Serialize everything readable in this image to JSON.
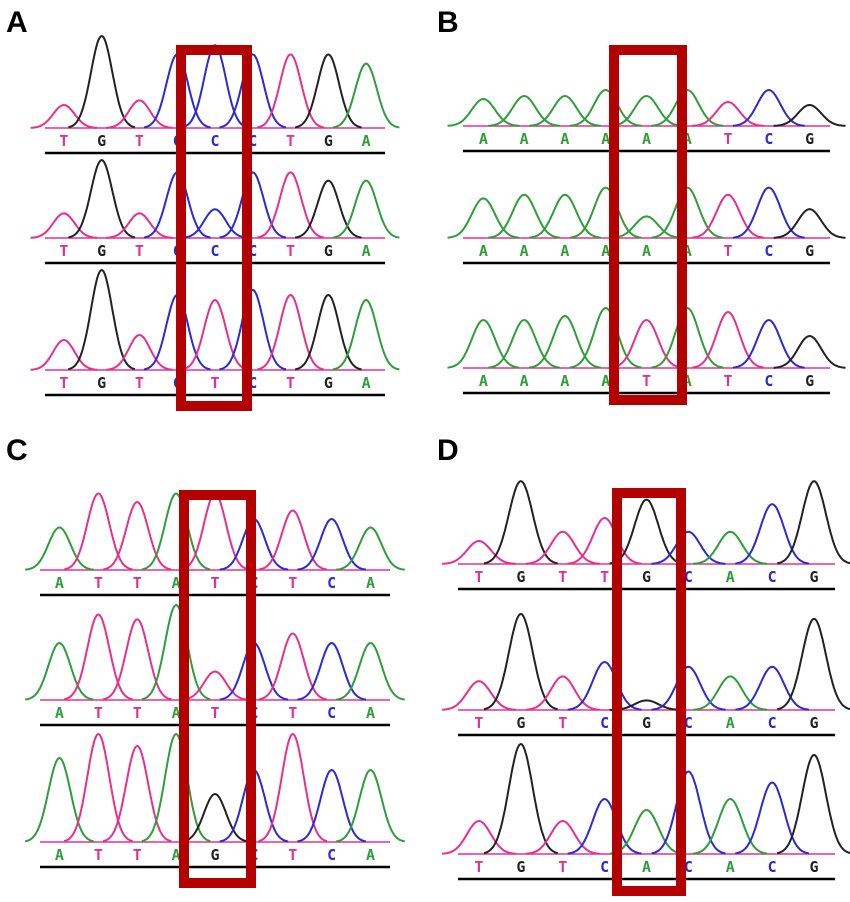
{
  "colors": {
    "A": "#2e9e3a",
    "C": "#2a2ad8",
    "G": "#222222",
    "T": "#e8308a",
    "highlight": "#b30000",
    "baseline": "#e8308a",
    "cursor": "#7fc9ec"
  },
  "panels": [
    {
      "label": "A",
      "rows": [
        {
          "bases": [
            "T",
            "G",
            "T",
            "C",
            "C",
            "C",
            "T",
            "G",
            "A"
          ],
          "heights": [
            0.25,
            1.0,
            0.3,
            0.8,
            0.9,
            0.8,
            0.8,
            0.8,
            0.7
          ]
        },
        {
          "bases": [
            "T",
            "G",
            "T",
            "C",
            "C",
            "C",
            "T",
            "G",
            "A"
          ],
          "heights": [
            0.3,
            0.95,
            0.3,
            0.8,
            0.35,
            0.8,
            0.8,
            0.7,
            0.7
          ]
        },
        {
          "bases": [
            "T",
            "G",
            "T",
            "C",
            "T",
            "C",
            "T",
            "G",
            "A"
          ],
          "heights": [
            0.3,
            1.0,
            0.35,
            0.75,
            0.7,
            0.8,
            0.75,
            0.75,
            0.7
          ]
        }
      ]
    },
    {
      "label": "B",
      "rows": [
        {
          "bases": [
            "A",
            "A",
            "A",
            "A",
            "A",
            "A",
            "T",
            "C",
            "G"
          ],
          "heights": [
            0.45,
            0.5,
            0.5,
            0.6,
            0.5,
            0.6,
            0.4,
            0.6,
            0.35
          ]
        },
        {
          "bases": [
            "A",
            "A",
            "A",
            "A",
            "A",
            "A",
            "T",
            "C",
            "G"
          ],
          "heights": [
            0.55,
            0.6,
            0.6,
            0.7,
            0.3,
            0.7,
            0.6,
            0.7,
            0.4
          ]
        },
        {
          "bases": [
            "A",
            "A",
            "A",
            "A",
            "T",
            "A",
            "T",
            "C",
            "G"
          ],
          "heights": [
            0.6,
            0.6,
            0.65,
            0.75,
            0.6,
            0.75,
            0.7,
            0.6,
            0.4
          ]
        }
      ]
    },
    {
      "label": "C",
      "rows": [
        {
          "bases": [
            "A",
            "T",
            "T",
            "A",
            "T",
            "C",
            "T",
            "C",
            "A"
          ],
          "heights": [
            0.5,
            0.9,
            0.8,
            0.9,
            0.9,
            0.6,
            0.7,
            0.6,
            0.5
          ]
        },
        {
          "bases": [
            "A",
            "T",
            "T",
            "A",
            "T",
            "C",
            "T",
            "C",
            "A"
          ],
          "heights": [
            0.6,
            0.9,
            0.85,
            1.0,
            0.3,
            0.6,
            0.7,
            0.6,
            0.6
          ]
        },
        {
          "bases": [
            "A",
            "T",
            "T",
            "A",
            "G",
            "C",
            "T",
            "C",
            "A"
          ],
          "heights": [
            0.7,
            0.9,
            0.8,
            0.9,
            0.4,
            0.6,
            0.9,
            0.6,
            0.6
          ]
        }
      ]
    },
    {
      "label": "D",
      "rows": [
        {
          "bases": [
            "T",
            "G",
            "T",
            "T",
            "G",
            "C",
            "A",
            "C",
            "G"
          ],
          "heights": [
            0.25,
            0.9,
            0.35,
            0.5,
            0.7,
            0.35,
            0.35,
            0.65,
            0.9
          ]
        },
        {
          "bases": [
            "T",
            "G",
            "T",
            "C",
            "G",
            "C",
            "A",
            "C",
            "G"
          ],
          "heights": [
            0.3,
            1.0,
            0.35,
            0.5,
            0.1,
            0.45,
            0.35,
            0.45,
            0.95
          ]
        },
        {
          "bases": [
            "T",
            "G",
            "T",
            "C",
            "A",
            "C",
            "A",
            "C",
            "G"
          ],
          "heights": [
            0.3,
            1.0,
            0.3,
            0.5,
            0.4,
            0.75,
            0.5,
            0.65,
            0.9
          ]
        }
      ]
    }
  ]
}
